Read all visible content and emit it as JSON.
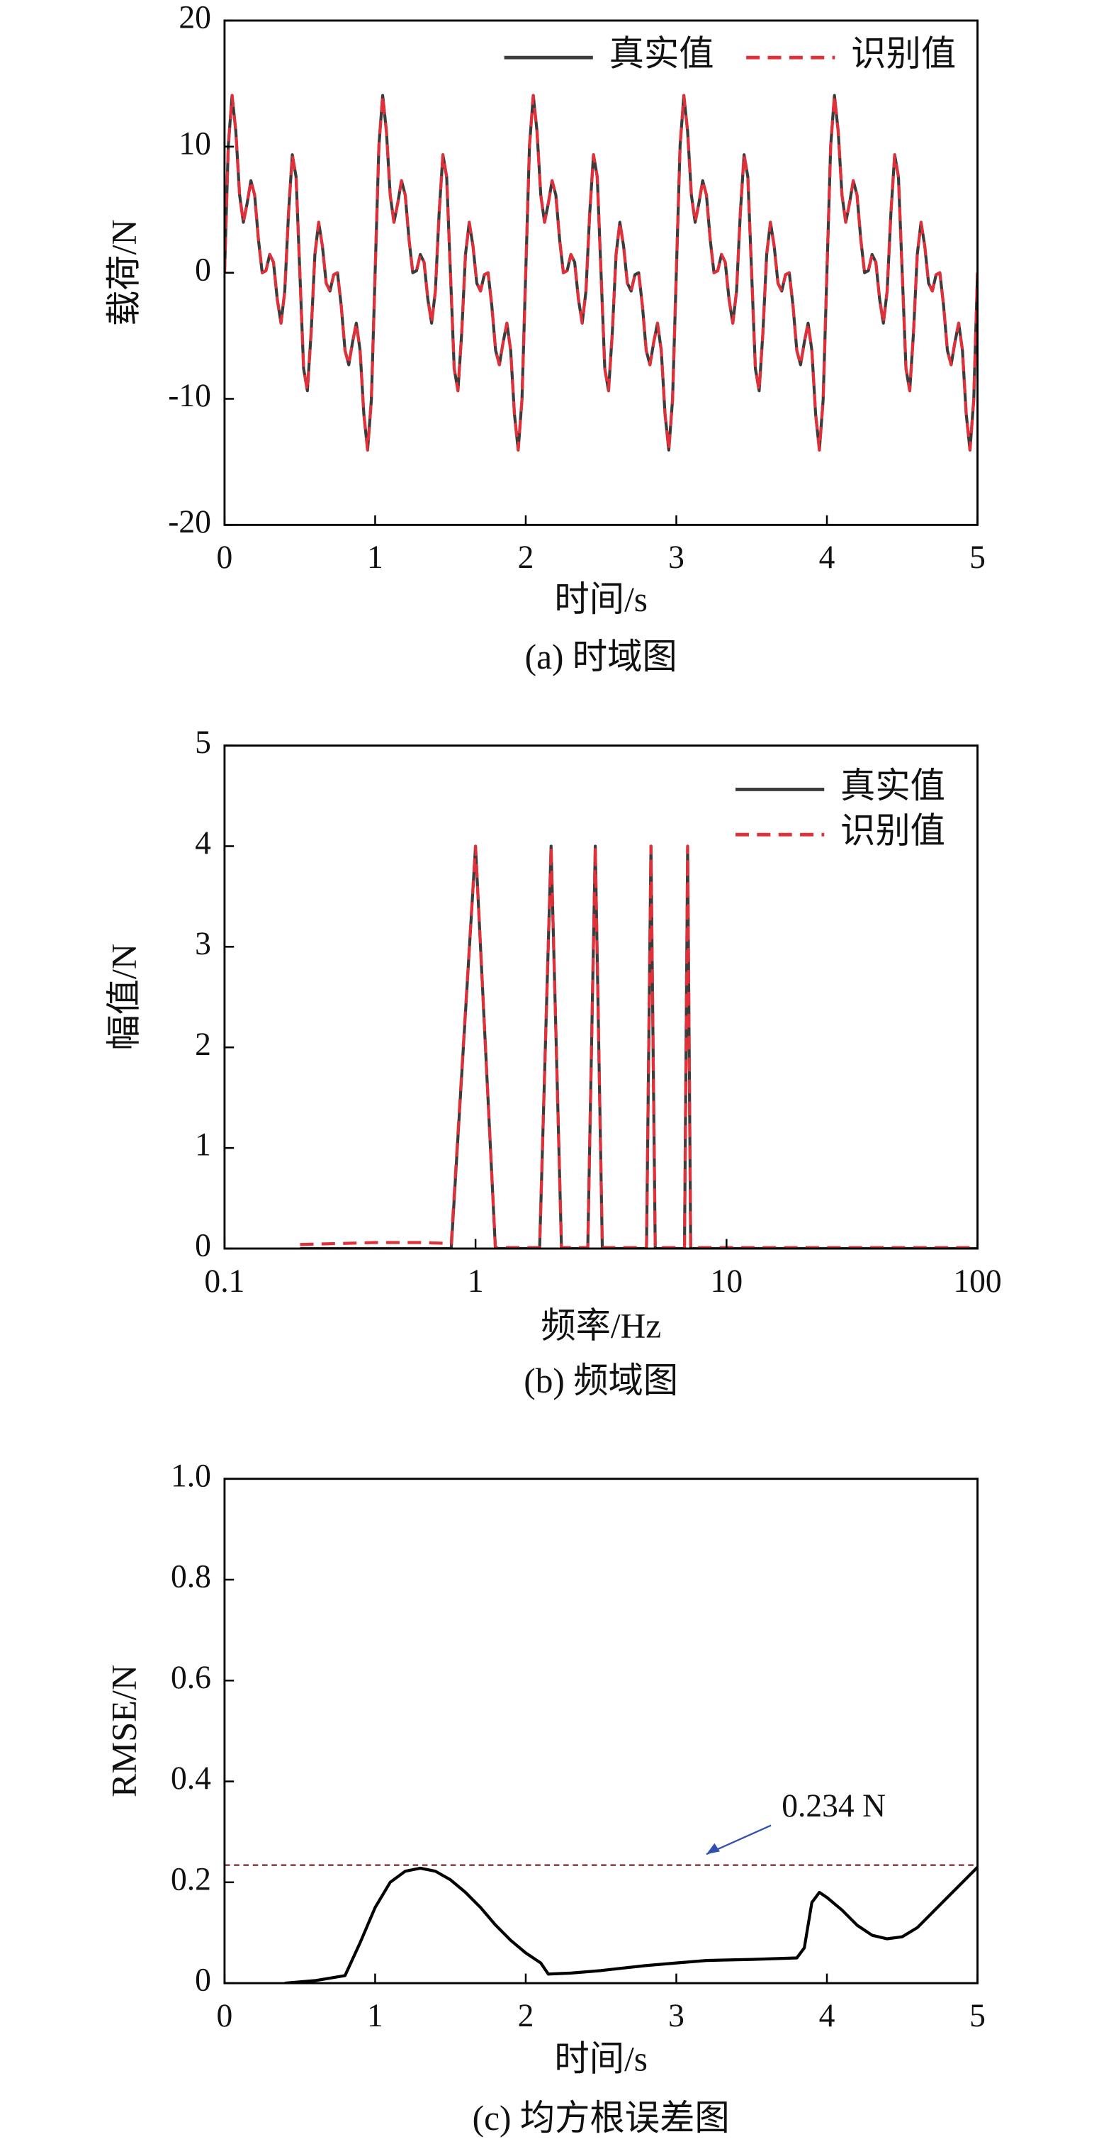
{
  "chart_data": [
    {
      "type": "line",
      "caption": "(a) 时域图",
      "xlabel": "时间/s",
      "ylabel": "载荷/N",
      "xlim": [
        0,
        5
      ],
      "xticks": [
        0,
        1,
        2,
        3,
        4,
        5
      ],
      "ylim": [
        -20,
        20
      ],
      "yticks": [
        -20,
        -10,
        0,
        10,
        20
      ],
      "legend": "upper right",
      "x": [
        0,
        0.025,
        0.05,
        0.075,
        0.1,
        0.125,
        0.15,
        0.175,
        0.2,
        0.225,
        0.25,
        0.275,
        0.3,
        0.325,
        0.35,
        0.375,
        0.4,
        0.425,
        0.45,
        0.475,
        0.5,
        0.525,
        0.55,
        0.575,
        0.6,
        0.625,
        0.65,
        0.675,
        0.7,
        0.725,
        0.75,
        0.775,
        0.8,
        0.825,
        0.85,
        0.875,
        0.9,
        0.925,
        0.95,
        0.975,
        1,
        1.025,
        1.05,
        1.075,
        1.1,
        1.125,
        1.15,
        1.175,
        1.2,
        1.225,
        1.25,
        1.275,
        1.3,
        1.325,
        1.35,
        1.375,
        1.4,
        1.425,
        1.45,
        1.475,
        1.5,
        1.525,
        1.55,
        1.575,
        1.6,
        1.625,
        1.65,
        1.675,
        1.7,
        1.725,
        1.75,
        1.775,
        1.8,
        1.825,
        1.85,
        1.875,
        1.9,
        1.925,
        1.95,
        1.975,
        2,
        2.025,
        2.05,
        2.075,
        2.1,
        2.125,
        2.15,
        2.175,
        2.2,
        2.225,
        2.25,
        2.275,
        2.3,
        2.325,
        2.35,
        2.375,
        2.4,
        2.425,
        2.45,
        2.475,
        2.5,
        2.525,
        2.55,
        2.575,
        2.6,
        2.625,
        2.65,
        2.675,
        2.7,
        2.725,
        2.75,
        2.775,
        2.8,
        2.825,
        2.85,
        2.875,
        2.9,
        2.925,
        2.95,
        2.975,
        3,
        3.025,
        3.05,
        3.075,
        3.1,
        3.125,
        3.15,
        3.175,
        3.2,
        3.225,
        3.25,
        3.275,
        3.3,
        3.325,
        3.35,
        3.375,
        3.4,
        3.425,
        3.45,
        3.475,
        3.5,
        3.525,
        3.55,
        3.575,
        3.6,
        3.625,
        3.65,
        3.675,
        3.7,
        3.725,
        3.75,
        3.775,
        3.8,
        3.825,
        3.85,
        3.875,
        3.9,
        3.925,
        3.95,
        3.975,
        4,
        4.025,
        4.05,
        4.075,
        4.1,
        4.125,
        4.15,
        4.175,
        4.2,
        4.225,
        4.25,
        4.275,
        4.3,
        4.325,
        4.35,
        4.375,
        4.4,
        4.425,
        4.45,
        4.475,
        4.5,
        4.525,
        4.55,
        4.575,
        4.6,
        4.625,
        4.65,
        4.675,
        4.7,
        4.725,
        4.75,
        4.775,
        4.8,
        4.825,
        4.85,
        4.875,
        4.9,
        4.925,
        4.95,
        4.975,
        5
      ],
      "series": [
        {
          "name": "真实值",
          "color": "#3c3c3c",
          "style": "solid",
          "values": [
            0,
            10.07,
            14.06,
            11.21,
            6.16,
            4,
            5.51,
            7.3,
            6.16,
            2.64,
            0,
            0.16,
            1.45,
            0.83,
            -2.1,
            -4,
            -1.45,
            4.74,
            9.36,
            7.6,
            0,
            -7.6,
            -9.36,
            -4.74,
            1.45,
            4,
            2.1,
            -0.83,
            -1.45,
            -0.16,
            0,
            -2.64,
            -6.16,
            -7.3,
            -5.51,
            -4,
            -6.16,
            -11.21,
            -14.06,
            -10.07,
            0,
            10.07,
            14.06,
            11.21,
            6.16,
            4,
            5.51,
            7.3,
            6.16,
            2.64,
            0,
            0.16,
            1.45,
            0.83,
            -2.1,
            -4,
            -1.45,
            4.74,
            9.36,
            7.6,
            0,
            -7.6,
            -9.36,
            -4.74,
            1.45,
            4,
            2.1,
            -0.83,
            -1.45,
            -0.16,
            0,
            -2.64,
            -6.16,
            -7.3,
            -5.51,
            -4,
            -6.16,
            -11.21,
            -14.06,
            -10.07,
            0,
            10.07,
            14.06,
            11.21,
            6.16,
            4,
            5.51,
            7.3,
            6.16,
            2.64,
            0,
            0.16,
            1.45,
            0.83,
            -2.1,
            -4,
            -1.45,
            4.74,
            9.36,
            7.6,
            0,
            -7.6,
            -9.36,
            -4.74,
            1.45,
            4,
            2.1,
            -0.83,
            -1.45,
            -0.16,
            0,
            -2.64,
            -6.16,
            -7.3,
            -5.51,
            -4,
            -6.16,
            -11.21,
            -14.06,
            -10.07,
            0,
            10.07,
            14.06,
            11.21,
            6.16,
            4,
            5.51,
            7.3,
            6.16,
            2.64,
            0,
            0.16,
            1.45,
            0.83,
            -2.1,
            -4,
            -1.45,
            4.74,
            9.36,
            7.6,
            0,
            -7.6,
            -9.36,
            -4.74,
            1.45,
            4,
            2.1,
            -0.83,
            -1.45,
            -0.16,
            0,
            -2.64,
            -6.16,
            -7.3,
            -5.51,
            -4,
            -6.16,
            -11.21,
            -14.06,
            -10.07,
            0,
            10.07,
            14.06,
            11.21,
            6.16,
            4,
            5.51,
            7.3,
            6.16,
            2.64,
            0,
            0.16,
            1.45,
            0.83,
            -2.1,
            -4,
            -1.45,
            4.74,
            9.36,
            7.6,
            0,
            -7.6,
            -9.36,
            -4.74,
            1.45,
            4,
            2.1,
            -0.83,
            -1.45,
            -0.16,
            0,
            -2.64,
            -6.16,
            -7.3,
            -5.51,
            -4,
            -6.16,
            -11.21,
            -14.06,
            -10.07,
            0
          ]
        },
        {
          "name": "识别值",
          "color": "#e0303a",
          "style": "dashed",
          "values": [
            0,
            10.07,
            14.06,
            11.21,
            6.16,
            4,
            5.51,
            7.3,
            6.16,
            2.64,
            0,
            0.16,
            1.45,
            0.83,
            -2.1,
            -4,
            -1.45,
            4.74,
            9.36,
            7.6,
            0,
            -7.6,
            -9.36,
            -4.74,
            1.45,
            4,
            2.1,
            -0.83,
            -1.45,
            -0.16,
            0,
            -2.64,
            -6.16,
            -7.3,
            -5.51,
            -4,
            -6.16,
            -11.21,
            -14.06,
            -10.07,
            0,
            10.07,
            14.06,
            11.21,
            6.16,
            4,
            5.51,
            7.3,
            6.16,
            2.64,
            0,
            0.16,
            1.45,
            0.83,
            -2.1,
            -4,
            -1.45,
            4.74,
            9.36,
            7.6,
            0,
            -7.6,
            -9.36,
            -4.74,
            1.45,
            4,
            2.1,
            -0.83,
            -1.45,
            -0.16,
            0,
            -2.64,
            -6.16,
            -7.3,
            -5.51,
            -4,
            -6.16,
            -11.21,
            -14.06,
            -10.07,
            0,
            10.07,
            14.06,
            11.21,
            6.16,
            4,
            5.51,
            7.3,
            6.16,
            2.64,
            0,
            0.16,
            1.45,
            0.83,
            -2.1,
            -4,
            -1.45,
            4.74,
            9.36,
            7.6,
            0,
            -7.6,
            -9.36,
            -4.74,
            1.45,
            4,
            2.1,
            -0.83,
            -1.45,
            -0.16,
            0,
            -2.64,
            -6.16,
            -7.3,
            -5.51,
            -4,
            -6.16,
            -11.21,
            -14.06,
            -10.07,
            0,
            10.07,
            14.06,
            11.21,
            6.16,
            4,
            5.51,
            7.3,
            6.16,
            2.64,
            0,
            0.16,
            1.45,
            0.83,
            -2.1,
            -4,
            -1.45,
            4.74,
            9.36,
            7.6,
            0,
            -7.6,
            -9.36,
            -4.74,
            1.45,
            4,
            2.1,
            -0.83,
            -1.45,
            -0.16,
            0,
            -2.64,
            -6.16,
            -7.3,
            -5.51,
            -4,
            -6.16,
            -11.21,
            -14.06,
            -10.07,
            0,
            10.07,
            14.06,
            11.21,
            6.16,
            4,
            5.51,
            7.3,
            6.16,
            2.64,
            0,
            0.16,
            1.45,
            0.83,
            -2.1,
            -4,
            -1.45,
            4.74,
            9.36,
            7.6,
            0,
            -7.6,
            -9.36,
            -4.74,
            1.45,
            4,
            2.1,
            -0.83,
            -1.45,
            -0.16,
            0,
            -2.64,
            -6.16,
            -7.3,
            -5.51,
            -4,
            -6.16,
            -11.21,
            -14.06,
            -10.07,
            0
          ]
        }
      ]
    },
    {
      "type": "line",
      "caption": "(b) 频域图",
      "xlabel": "频率/Hz",
      "ylabel": "幅值/N",
      "xscale": "log",
      "xlim": [
        0.1,
        100
      ],
      "xticks": [
        0.1,
        1,
        10,
        100
      ],
      "ylim": [
        0,
        5
      ],
      "yticks": [
        0,
        1,
        2,
        3,
        4,
        5
      ],
      "legend": "upper right",
      "x": [
        0.2,
        0.4,
        0.6,
        0.8,
        1,
        1.2,
        1.8,
        2,
        2.2,
        2.8,
        3,
        3.2,
        4.8,
        5,
        5.2,
        6.8,
        7,
        7.2,
        10,
        100
      ],
      "series": [
        {
          "name": "真实值",
          "color": "#3c3c3c",
          "style": "solid",
          "values": [
            0,
            0,
            0,
            0,
            4,
            0,
            0,
            4,
            0,
            0,
            4,
            0,
            0,
            4,
            0,
            0,
            4,
            0,
            0,
            0
          ]
        },
        {
          "name": "识别值",
          "color": "#e0303a",
          "style": "dashed",
          "values": [
            0.04,
            0.06,
            0.06,
            0.05,
            4,
            0.01,
            0.01,
            4,
            0.01,
            0.01,
            4,
            0.01,
            0.01,
            4,
            0.01,
            0.01,
            4,
            0.01,
            0.01,
            0.01
          ]
        }
      ]
    },
    {
      "type": "line",
      "caption": "(c) 均方根误差图",
      "xlabel": "时间/s",
      "ylabel": "RMSE/N",
      "xlim": [
        0,
        5
      ],
      "xticks": [
        0,
        1,
        2,
        3,
        4,
        5
      ],
      "ylim": [
        0,
        1
      ],
      "yticks": [
        0,
        0.2,
        0.4,
        0.6,
        0.8,
        {
          "value": 1,
          "label": "1.0"
        }
      ],
      "reference_line": {
        "value": 0.234,
        "label": "0.234 N",
        "color": "#8b3a3a"
      },
      "x": [
        0.4,
        0.6,
        0.8,
        0.9,
        1,
        1.1,
        1.2,
        1.3,
        1.4,
        1.5,
        1.6,
        1.7,
        1.8,
        1.9,
        2,
        2.1,
        2.15,
        2.3,
        2.5,
        2.8,
        3,
        3.2,
        3.5,
        3.8,
        3.85,
        3.9,
        3.95,
        4,
        4.1,
        4.2,
        4.3,
        4.4,
        4.5,
        4.6,
        4.7,
        4.8,
        4.9,
        5
      ],
      "series": [
        {
          "color": "#000000",
          "style": "solid",
          "values": [
            0,
            0.005,
            0.015,
            0.08,
            0.15,
            0.2,
            0.222,
            0.228,
            0.222,
            0.205,
            0.18,
            0.15,
            0.115,
            0.085,
            0.06,
            0.04,
            0.018,
            0.02,
            0.025,
            0.035,
            0.04,
            0.045,
            0.047,
            0.05,
            0.07,
            0.16,
            0.18,
            0.17,
            0.145,
            0.115,
            0.095,
            0.088,
            0.092,
            0.11,
            0.14,
            0.17,
            0.2,
            0.23
          ]
        }
      ]
    }
  ]
}
